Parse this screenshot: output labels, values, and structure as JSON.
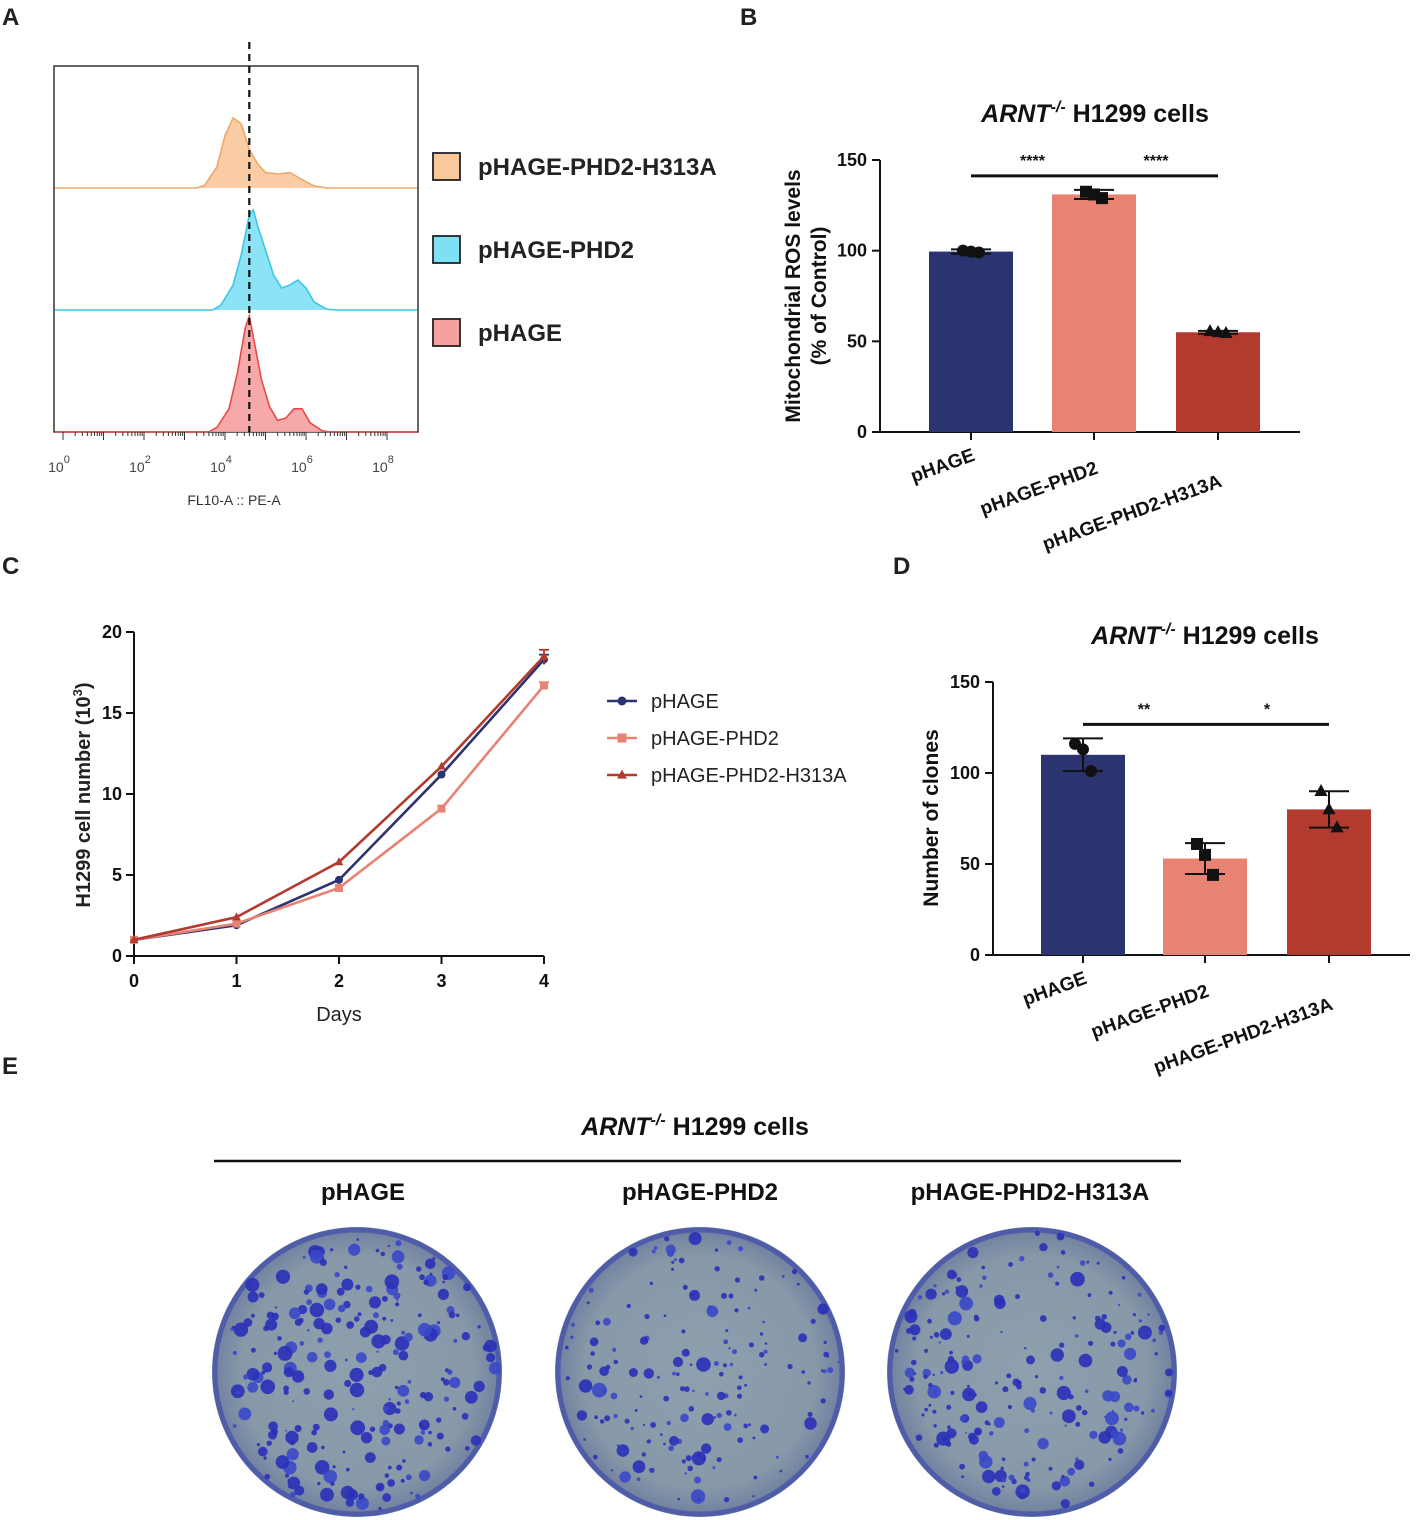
{
  "colors": {
    "navy": "#2c3470",
    "salmon": "#e88272",
    "brick": "#b23a2e",
    "hist_orange_fill": "#f9c89b",
    "hist_orange_line": "#f0a868",
    "hist_cyan_fill": "#7fe0f4",
    "hist_cyan_line": "#3cc6e8",
    "hist_red_fill": "#f6a0a0",
    "hist_red_line": "#e84a4a",
    "line_pHAGE": "#2c3470",
    "line_PHD2": "#e88272",
    "line_H313A": "#b23a2e"
  },
  "chart_data": [
    {
      "panel": "A",
      "type": "histogram",
      "xlabel": "FL10-A :: PE-A",
      "x_scale": "log10",
      "x_ticks": [
        {
          "base": "10",
          "exp": "0"
        },
        {
          "base": "10",
          "exp": "2"
        },
        {
          "base": "10",
          "exp": "4"
        },
        {
          "base": "10",
          "exp": "6"
        },
        {
          "base": "10",
          "exp": "8"
        }
      ],
      "reference_line_log10": 4.6,
      "series": [
        {
          "name": "pHAGE-PHD2-H313A",
          "color_key": "orange",
          "peak_log10": 4.3,
          "profile": [
            [
              3.3,
              0
            ],
            [
              3.5,
              0.04
            ],
            [
              3.8,
              0.3
            ],
            [
              4.0,
              0.75
            ],
            [
              4.2,
              1.0
            ],
            [
              4.4,
              0.92
            ],
            [
              4.6,
              0.55
            ],
            [
              4.8,
              0.35
            ],
            [
              5.0,
              0.22
            ],
            [
              5.3,
              0.2
            ],
            [
              5.6,
              0.22
            ],
            [
              5.9,
              0.12
            ],
            [
              6.2,
              0.03
            ],
            [
              6.5,
              0
            ]
          ]
        },
        {
          "name": "pHAGE-PHD2",
          "color_key": "cyan",
          "peak_log10": 4.7,
          "profile": [
            [
              3.7,
              0
            ],
            [
              3.9,
              0.05
            ],
            [
              4.2,
              0.25
            ],
            [
              4.4,
              0.55
            ],
            [
              4.6,
              0.95
            ],
            [
              4.7,
              1.0
            ],
            [
              4.8,
              0.85
            ],
            [
              5.0,
              0.6
            ],
            [
              5.2,
              0.35
            ],
            [
              5.4,
              0.22
            ],
            [
              5.6,
              0.25
            ],
            [
              5.8,
              0.3
            ],
            [
              6.0,
              0.22
            ],
            [
              6.2,
              0.08
            ],
            [
              6.5,
              0.01
            ],
            [
              6.7,
              0
            ]
          ]
        },
        {
          "name": "pHAGE",
          "color_key": "red",
          "peak_log10": 4.6,
          "profile": [
            [
              3.6,
              0
            ],
            [
              3.8,
              0.04
            ],
            [
              4.1,
              0.2
            ],
            [
              4.3,
              0.5
            ],
            [
              4.5,
              0.9
            ],
            [
              4.6,
              1.0
            ],
            [
              4.7,
              0.82
            ],
            [
              4.9,
              0.45
            ],
            [
              5.1,
              0.22
            ],
            [
              5.3,
              0.1
            ],
            [
              5.5,
              0.12
            ],
            [
              5.7,
              0.2
            ],
            [
              5.9,
              0.2
            ],
            [
              6.1,
              0.08
            ],
            [
              6.4,
              0.01
            ],
            [
              6.6,
              0
            ]
          ]
        }
      ],
      "legend": [
        "pHAGE-PHD2-H313A",
        "pHAGE-PHD2",
        "pHAGE"
      ]
    },
    {
      "panel": "B",
      "type": "bar",
      "title_italic": "ARNT",
      "title_sup": "-/-",
      "title_rest": " H1299 cells",
      "ylabel_line1": "Mitochondrial ROS levels",
      "ylabel_line2": "(% of Control)",
      "ylim": [
        0,
        150
      ],
      "yticks": [
        0,
        50,
        100,
        150
      ],
      "categories": [
        "pHAGE",
        "pHAGE-PHD2",
        "pHAGE-PHD2-H313A"
      ],
      "values": [
        99.5,
        131,
        55
      ],
      "errors": [
        1.2,
        2.5,
        0.8
      ],
      "points": [
        [
          100,
          99.5,
          99
        ],
        [
          132.5,
          131,
          129
        ],
        [
          55.5,
          55,
          54.5
        ]
      ],
      "markers": [
        "circle",
        "square",
        "triangle"
      ],
      "significance": [
        {
          "from": 0,
          "to": 1,
          "label": "****"
        },
        {
          "from": 1,
          "to": 2,
          "label": "****"
        }
      ]
    },
    {
      "panel": "C",
      "type": "line",
      "xlabel": "Days",
      "ylabel_main": "H1299 cell number (10",
      "ylabel_sup": "3",
      "ylabel_close": ")",
      "x": [
        0,
        1,
        2,
        3,
        4
      ],
      "xlim": [
        0,
        4
      ],
      "ylim": [
        0,
        20
      ],
      "yticks": [
        0,
        5,
        10,
        15,
        20
      ],
      "series": [
        {
          "name": "pHAGE",
          "marker": "circle",
          "values": [
            1.0,
            1.9,
            4.7,
            11.2,
            18.3
          ],
          "errors": [
            0,
            0,
            0,
            0,
            0.3
          ]
        },
        {
          "name": "pHAGE-PHD2",
          "marker": "square",
          "values": [
            1.0,
            2.0,
            4.2,
            9.1,
            16.7
          ],
          "errors": [
            0,
            0,
            0,
            0,
            0.2
          ]
        },
        {
          "name": "pHAGE-PHD2-H313A",
          "marker": "triangle",
          "values": [
            1.0,
            2.4,
            5.8,
            11.7,
            18.5
          ],
          "errors": [
            0,
            0,
            0,
            0,
            0.4
          ]
        }
      ]
    },
    {
      "panel": "D",
      "type": "bar",
      "title_italic": "ARNT",
      "title_sup": "-/-",
      "title_rest": " H1299 cells",
      "ylabel_line1": "Number of clones",
      "ylim": [
        0,
        150
      ],
      "yticks": [
        0,
        50,
        100,
        150
      ],
      "categories": [
        "pHAGE",
        "pHAGE-PHD2",
        "pHAGE-PHD2-H313A"
      ],
      "values": [
        110,
        53,
        80
      ],
      "errors": [
        9,
        8.5,
        10
      ],
      "points": [
        [
          116,
          113,
          101
        ],
        [
          61,
          55,
          44
        ],
        [
          90,
          80,
          70
        ]
      ],
      "markers": [
        "circle",
        "square",
        "triangle"
      ],
      "significance": [
        {
          "from": 0,
          "to": 1,
          "label": "**"
        },
        {
          "from": 1,
          "to": 2,
          "label": "*"
        }
      ]
    }
  ],
  "panel_e": {
    "title_italic": "ARNT",
    "title_sup": "-/-",
    "title_rest": " H1299 cells",
    "plates": [
      "pHAGE",
      "pHAGE-PHD2",
      "pHAGE-PHD2-H313A"
    ]
  },
  "panel_letters": [
    "A",
    "B",
    "C",
    "D",
    "E"
  ]
}
